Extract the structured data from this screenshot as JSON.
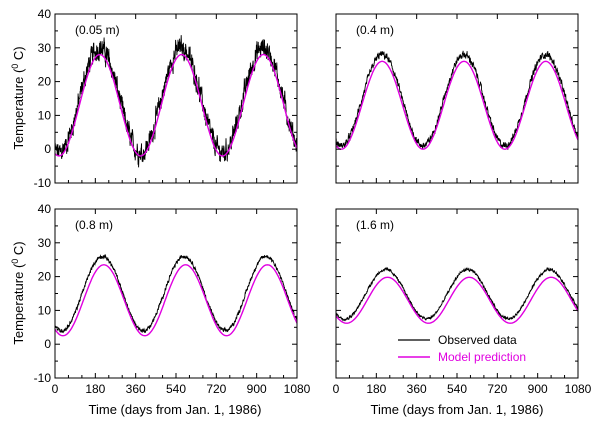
{
  "figure": {
    "ylabel": "Temperature (",
    "ylabel_sup": "0",
    "ylabel_unit": " C)",
    "xlabel": "Time (days from Jan. 1, 1986)",
    "legend": {
      "observed": "Observed data",
      "model": "Model prediction"
    },
    "colors": {
      "observed": "#000000",
      "model": "#e000e0",
      "axes": "#000000"
    }
  },
  "chart_data": [
    {
      "type": "line",
      "panel": "top-left",
      "label": "(0.05 m)",
      "xlim": [
        0,
        1080
      ],
      "ylim": [
        -10,
        40
      ],
      "xticks": [
        0,
        180,
        360,
        540,
        720,
        900,
        1080
      ],
      "yticks": [
        -10,
        0,
        10,
        20,
        30,
        40
      ],
      "xtick_labels_shown": false,
      "ytick_labels_shown": true,
      "series": [
        {
          "name": "Observed data",
          "mean": 14.5,
          "amplitude": 15.5,
          "phase_day": 199,
          "noise": 2.6
        },
        {
          "name": "Model prediction",
          "mean": 13.0,
          "amplitude": 15.0,
          "phase_day": 200,
          "noise": 0
        }
      ]
    },
    {
      "type": "line",
      "panel": "top-right",
      "label": "(0.4 m)",
      "xlim": [
        0,
        1080
      ],
      "ylim": [
        -10,
        40
      ],
      "xticks": [
        0,
        180,
        360,
        540,
        720,
        900,
        1080
      ],
      "yticks": [
        -10,
        0,
        10,
        20,
        30,
        40
      ],
      "xtick_labels_shown": false,
      "ytick_labels_shown": false,
      "series": [
        {
          "name": "Observed data",
          "mean": 14.5,
          "amplitude": 13.5,
          "phase_day": 206,
          "noise": 0.9
        },
        {
          "name": "Model prediction",
          "mean": 13.0,
          "amplitude": 13.0,
          "phase_day": 206,
          "noise": 0
        }
      ]
    },
    {
      "type": "line",
      "panel": "bottom-left",
      "label": "(0.8 m)",
      "xlim": [
        0,
        1080
      ],
      "ylim": [
        -10,
        40
      ],
      "xticks": [
        0,
        180,
        360,
        540,
        720,
        900,
        1080
      ],
      "yticks": [
        -10,
        0,
        10,
        20,
        30,
        40
      ],
      "xtick_labels_shown": true,
      "ytick_labels_shown": true,
      "series": [
        {
          "name": "Observed data",
          "mean": 15.0,
          "amplitude": 11.0,
          "phase_day": 212,
          "noise": 0.5
        },
        {
          "name": "Model prediction",
          "mean": 13.0,
          "amplitude": 10.5,
          "phase_day": 218,
          "noise": 0
        }
      ]
    },
    {
      "type": "line",
      "panel": "bottom-right",
      "label": "(1.6 m)",
      "xlim": [
        0,
        1080
      ],
      "ylim": [
        -10,
        40
      ],
      "xticks": [
        0,
        180,
        360,
        540,
        720,
        900,
        1080
      ],
      "yticks": [
        -10,
        0,
        10,
        20,
        30,
        40
      ],
      "xtick_labels_shown": true,
      "ytick_labels_shown": false,
      "series": [
        {
          "name": "Observed data",
          "mean": 14.8,
          "amplitude": 7.3,
          "phase_day": 222,
          "noise": 0.35
        },
        {
          "name": "Model prediction",
          "mean": 13.0,
          "amplitude": 6.8,
          "phase_day": 230,
          "noise": 0
        }
      ]
    }
  ]
}
